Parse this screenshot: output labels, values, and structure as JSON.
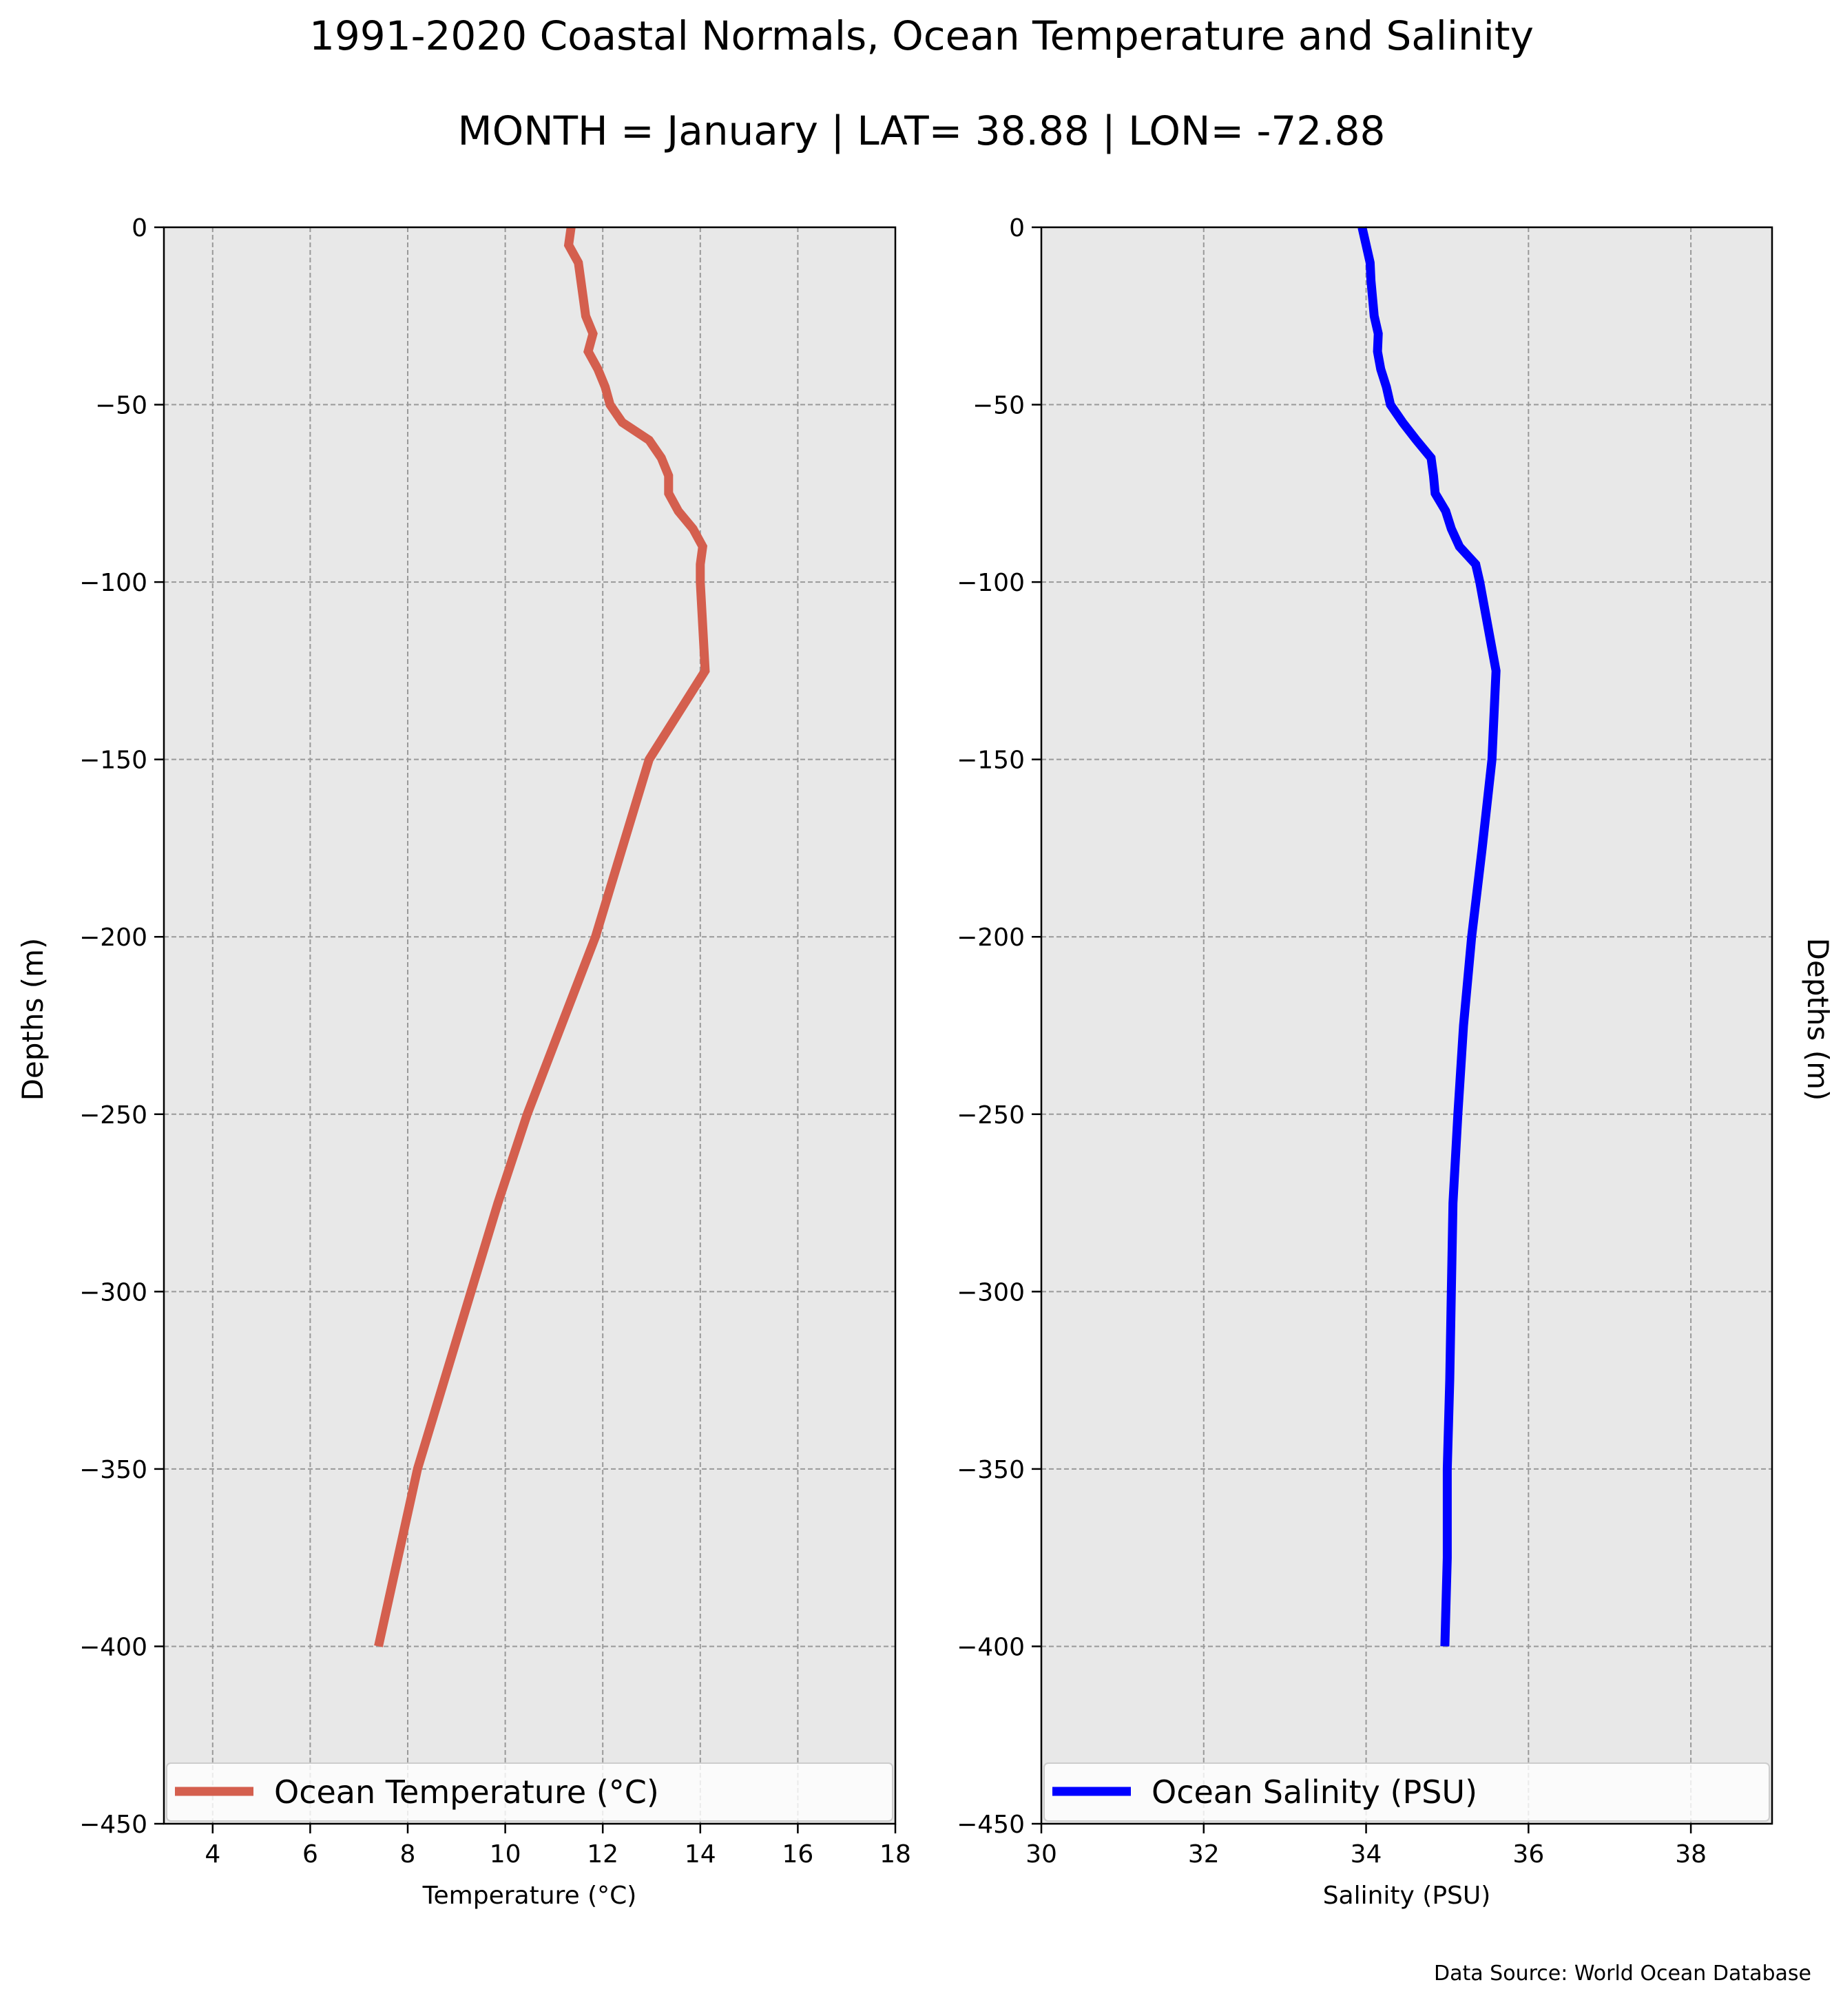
{
  "title": "1991-2020 Coastal Normals, Ocean Temperature and Salinity",
  "subtitle": "MONTH = January | LAT= 38.88 | LON= -72.88",
  "source_note": "Data Source: World Ocean Database",
  "chart_data": [
    {
      "type": "line",
      "xlabel": "Temperature ($^\\circ$C)",
      "xlabel_display": "Temperature (°C)",
      "ylabel": "Depths (m)",
      "xlim": [
        3,
        18
      ],
      "ylim": [
        -450,
        0
      ],
      "xticks": [
        4,
        6,
        8,
        10,
        12,
        14,
        16,
        18
      ],
      "yticks": [
        0,
        -50,
        -100,
        -150,
        -200,
        -250,
        -300,
        -350,
        -400,
        -450
      ],
      "grid": true,
      "legend_position": "lower center",
      "series": [
        {
          "name": "Ocean Temperature ($^\\circ$C)",
          "name_display": "Ocean Temperature (°C)",
          "color": "#d45f4e",
          "points": [
            [
              11.35,
              0
            ],
            [
              11.3,
              -5
            ],
            [
              11.5,
              -10
            ],
            [
              11.6,
              -20
            ],
            [
              11.65,
              -25
            ],
            [
              11.8,
              -30
            ],
            [
              11.7,
              -35
            ],
            [
              11.9,
              -40
            ],
            [
              12.05,
              -45
            ],
            [
              12.15,
              -50
            ],
            [
              12.4,
              -55
            ],
            [
              12.95,
              -60
            ],
            [
              13.2,
              -65
            ],
            [
              13.35,
              -70
            ],
            [
              13.35,
              -75
            ],
            [
              13.55,
              -80
            ],
            [
              13.85,
              -85
            ],
            [
              14.05,
              -90
            ],
            [
              14.0,
              -95
            ],
            [
              14.0,
              -100
            ],
            [
              14.1,
              -125
            ],
            [
              12.95,
              -150
            ],
            [
              12.4,
              -175
            ],
            [
              11.85,
              -200
            ],
            [
              11.15,
              -225
            ],
            [
              10.45,
              -250
            ],
            [
              9.85,
              -275
            ],
            [
              9.3,
              -300
            ],
            [
              8.75,
              -325
            ],
            [
              8.2,
              -350
            ],
            [
              7.8,
              -375
            ],
            [
              7.4,
              -400
            ]
          ]
        }
      ]
    },
    {
      "type": "line",
      "xlabel": "Salinity (PSU)",
      "ylabel": "Depths (m)",
      "xlim": [
        30,
        39
      ],
      "ylim": [
        -450,
        0
      ],
      "xticks": [
        30,
        32,
        34,
        36,
        38
      ],
      "yticks": [
        0,
        -50,
        -100,
        -150,
        -200,
        -250,
        -300,
        -350,
        -400,
        -450
      ],
      "grid": true,
      "legend_position": "lower center",
      "series": [
        {
          "name": "Ocean Salinity (PSU)",
          "color": "#0000ff",
          "points": [
            [
              33.95,
              0
            ],
            [
              34.0,
              -5
            ],
            [
              34.05,
              -10
            ],
            [
              34.06,
              -15
            ],
            [
              34.1,
              -25
            ],
            [
              34.15,
              -30
            ],
            [
              34.14,
              -35
            ],
            [
              34.18,
              -40
            ],
            [
              34.25,
              -45
            ],
            [
              34.3,
              -50
            ],
            [
              34.45,
              -55
            ],
            [
              34.62,
              -60
            ],
            [
              34.8,
              -65
            ],
            [
              34.83,
              -70
            ],
            [
              34.85,
              -75
            ],
            [
              34.98,
              -80
            ],
            [
              35.05,
              -85
            ],
            [
              35.15,
              -90
            ],
            [
              35.35,
              -95
            ],
            [
              35.4,
              -100
            ],
            [
              35.6,
              -125
            ],
            [
              35.55,
              -150
            ],
            [
              35.43,
              -175
            ],
            [
              35.3,
              -200
            ],
            [
              35.2,
              -225
            ],
            [
              35.13,
              -250
            ],
            [
              35.07,
              -275
            ],
            [
              35.05,
              -300
            ],
            [
              35.03,
              -325
            ],
            [
              35.0,
              -350
            ],
            [
              35.0,
              -375
            ],
            [
              34.97,
              -400
            ]
          ]
        }
      ]
    }
  ]
}
